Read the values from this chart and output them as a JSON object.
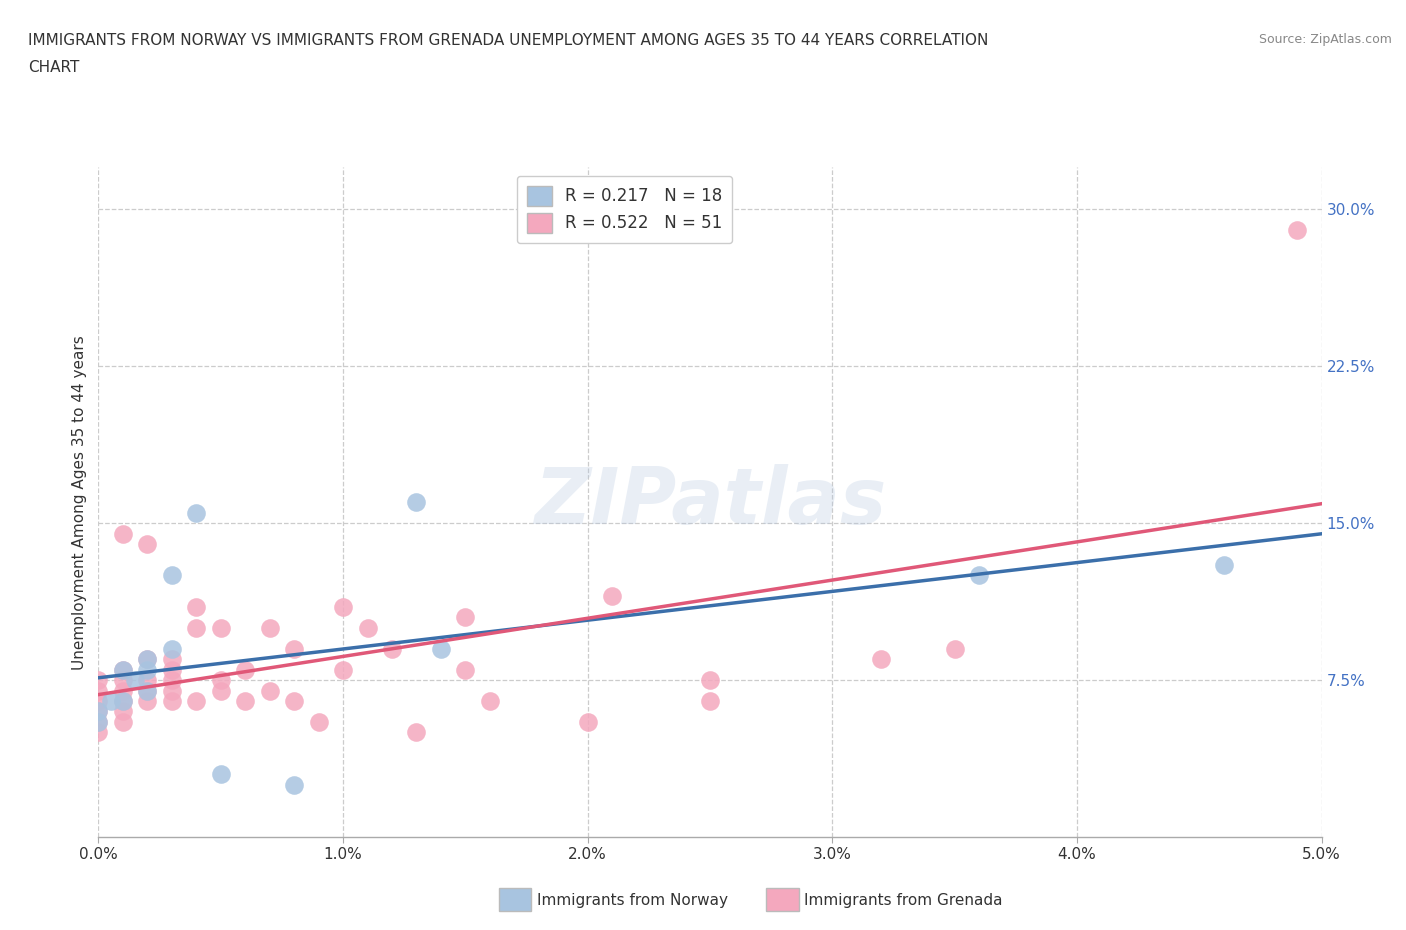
{
  "title_line1": "IMMIGRANTS FROM NORWAY VS IMMIGRANTS FROM GRENADA UNEMPLOYMENT AMONG AGES 35 TO 44 YEARS CORRELATION",
  "title_line2": "CHART",
  "source": "Source: ZipAtlas.com",
  "ylabel": "Unemployment Among Ages 35 to 44 years",
  "xlim": [
    0.0,
    0.05
  ],
  "ylim": [
    0.0,
    0.32
  ],
  "xticks": [
    0.0,
    0.01,
    0.02,
    0.03,
    0.04,
    0.05
  ],
  "yticks": [
    0.075,
    0.15,
    0.225,
    0.3
  ],
  "ytick_labels": [
    "7.5%",
    "15.0%",
    "22.5%",
    "30.0%"
  ],
  "xtick_labels": [
    "0.0%",
    "1.0%",
    "2.0%",
    "3.0%",
    "4.0%",
    "5.0%"
  ],
  "norway_color": "#a8c4e0",
  "grenada_color": "#f4a8be",
  "norway_line_color": "#3b6faa",
  "grenada_line_color": "#e05878",
  "right_axis_color": "#4472c4",
  "norway_R": 0.217,
  "norway_N": 18,
  "grenada_R": 0.522,
  "grenada_N": 51,
  "watermark_text": "ZIPatlas",
  "norway_x": [
    0.0,
    0.0,
    0.0005,
    0.001,
    0.001,
    0.0015,
    0.002,
    0.002,
    0.002,
    0.003,
    0.003,
    0.004,
    0.005,
    0.008,
    0.013,
    0.014,
    0.036,
    0.046
  ],
  "norway_y": [
    0.055,
    0.06,
    0.065,
    0.065,
    0.08,
    0.075,
    0.07,
    0.08,
    0.085,
    0.09,
    0.125,
    0.155,
    0.03,
    0.025,
    0.16,
    0.09,
    0.125,
    0.13
  ],
  "grenada_x": [
    0.0,
    0.0,
    0.0,
    0.0,
    0.0,
    0.0,
    0.001,
    0.001,
    0.001,
    0.001,
    0.001,
    0.001,
    0.001,
    0.002,
    0.002,
    0.002,
    0.002,
    0.002,
    0.003,
    0.003,
    0.003,
    0.003,
    0.003,
    0.004,
    0.004,
    0.004,
    0.005,
    0.005,
    0.005,
    0.006,
    0.006,
    0.007,
    0.007,
    0.008,
    0.008,
    0.009,
    0.01,
    0.01,
    0.011,
    0.012,
    0.013,
    0.015,
    0.015,
    0.016,
    0.02,
    0.021,
    0.025,
    0.025,
    0.032,
    0.035,
    0.049
  ],
  "grenada_y": [
    0.05,
    0.055,
    0.06,
    0.065,
    0.07,
    0.075,
    0.055,
    0.06,
    0.065,
    0.07,
    0.075,
    0.08,
    0.145,
    0.065,
    0.07,
    0.075,
    0.085,
    0.14,
    0.065,
    0.07,
    0.075,
    0.08,
    0.085,
    0.065,
    0.1,
    0.11,
    0.07,
    0.075,
    0.1,
    0.065,
    0.08,
    0.07,
    0.1,
    0.065,
    0.09,
    0.055,
    0.08,
    0.11,
    0.1,
    0.09,
    0.05,
    0.08,
    0.105,
    0.065,
    0.055,
    0.115,
    0.065,
    0.075,
    0.085,
    0.09,
    0.29
  ],
  "background_color": "#ffffff",
  "grid_color": "#cccccc",
  "legend_norway_label": "Immigrants from Norway",
  "legend_grenada_label": "Immigrants from Grenada"
}
